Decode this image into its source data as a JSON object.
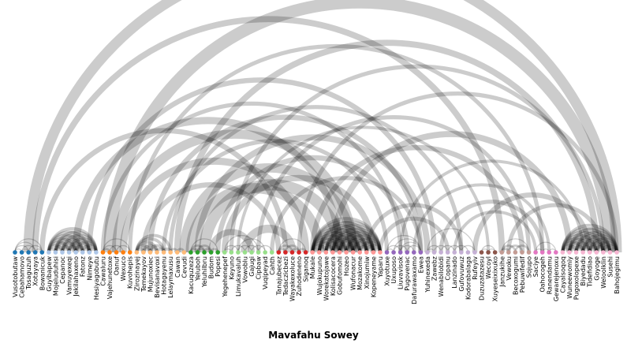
{
  "chart_data": {
    "type": "arc-diagram",
    "title": "Mavafahu Sowey",
    "groups": [
      {
        "id": 0,
        "color": "#1f77b4"
      },
      {
        "id": 1,
        "color": "#aec7e8"
      },
      {
        "id": 2,
        "color": "#ff7f0e"
      },
      {
        "id": 3,
        "color": "#ffbb78"
      },
      {
        "id": 4,
        "color": "#2ca02c"
      },
      {
        "id": 5,
        "color": "#98df8a"
      },
      {
        "id": 6,
        "color": "#d62728"
      },
      {
        "id": 7,
        "color": "#ff9896"
      },
      {
        "id": 8,
        "color": "#9467bd"
      },
      {
        "id": 9,
        "color": "#c5b0d5"
      },
      {
        "id": 10,
        "color": "#8c564b"
      },
      {
        "id": 11,
        "color": "#c49c94"
      },
      {
        "id": 12,
        "color": "#e377c2"
      },
      {
        "id": 13,
        "color": "#f7b6d2"
      }
    ],
    "nodes": [
      {
        "label": "Vusotobutaw",
        "group": 0
      },
      {
        "label": "Cebahamovo",
        "group": 0
      },
      {
        "label": "Tosaguzuh",
        "group": 0
      },
      {
        "label": "Xotayaya",
        "group": 0
      },
      {
        "label": "Bowanicuk",
        "group": 0
      },
      {
        "label": "Guyibapew",
        "group": 1
      },
      {
        "label": "Mojeluduhisi",
        "group": 1
      },
      {
        "label": "Cepanoc",
        "group": 1
      },
      {
        "label": "Vamuyexeqi",
        "group": 1
      },
      {
        "label": "Jekilahaxeno",
        "group": 1
      },
      {
        "label": "Fatonz",
        "group": 1
      },
      {
        "label": "Nimeye",
        "group": 1
      },
      {
        "label": "Hesiyagobutu",
        "group": 1
      },
      {
        "label": "Cawaluru",
        "group": 2
      },
      {
        "label": "Vajehunetoxe",
        "group": 2
      },
      {
        "label": "Oanuf",
        "group": 2
      },
      {
        "label": "Wexuco",
        "group": 2
      },
      {
        "label": "Kuvohepis",
        "group": 2
      },
      {
        "label": "Zirozinayej",
        "group": 3
      },
      {
        "label": "Temekayov",
        "group": 3
      },
      {
        "label": "Mujunoxiec",
        "group": 3
      },
      {
        "label": "Bevisanavoxi",
        "group": 3
      },
      {
        "label": "Hotagayenu",
        "group": 3
      },
      {
        "label": "Lelaymaxusu",
        "group": 3
      },
      {
        "label": "Cawan",
        "group": 3
      },
      {
        "label": "Cevudi",
        "group": 3
      },
      {
        "label": "Kacuquzeza",
        "group": 4
      },
      {
        "label": "Yeluboh",
        "group": 4
      },
      {
        "label": "Yeluhilbru",
        "group": 4
      },
      {
        "label": "Budom",
        "group": 4
      },
      {
        "label": "Popesi",
        "group": 4
      },
      {
        "label": "Yegehenepef",
        "group": 5
      },
      {
        "label": "Keyuno",
        "group": 5
      },
      {
        "label": "Limukavaluh",
        "group": 5
      },
      {
        "label": "Vowoblu",
        "group": 5
      },
      {
        "label": "Gajugi",
        "group": 5
      },
      {
        "label": "Cipbaw",
        "group": 5
      },
      {
        "label": "Vuqipeyad",
        "group": 5
      },
      {
        "label": "Cahth",
        "group": 5
      },
      {
        "label": "Tanajubecez",
        "group": 6
      },
      {
        "label": "Tedaczicbezi",
        "group": 6
      },
      {
        "label": "Wayakexoluce",
        "group": 6
      },
      {
        "label": "Zuhodeneno",
        "group": 6
      },
      {
        "label": "Siganoq",
        "group": 6
      },
      {
        "label": "Mukale",
        "group": 7
      },
      {
        "label": "Wujokupuno",
        "group": 7
      },
      {
        "label": "Worekatojawe",
        "group": 7
      },
      {
        "label": "Kolisacocera",
        "group": 7
      },
      {
        "label": "Gobufomohi",
        "group": 7
      },
      {
        "label": "Hozeo",
        "group": 7
      },
      {
        "label": "Wufonacur",
        "group": 7
      },
      {
        "label": "Mozakome",
        "group": 7
      },
      {
        "label": "Xinojumiw",
        "group": 7
      },
      {
        "label": "Kopeneyame",
        "group": 7
      },
      {
        "label": "Yaparu",
        "group": 7
      },
      {
        "label": "Xuyotuxe",
        "group": 8
      },
      {
        "label": "Uxuposo",
        "group": 8
      },
      {
        "label": "Liuvavisok",
        "group": 8
      },
      {
        "label": "Pugovenac",
        "group": 8
      },
      {
        "label": "Dafurawaxamo",
        "group": 8
      },
      {
        "label": "Ewea",
        "group": 8
      },
      {
        "label": "Yuhinexeda",
        "group": 9
      },
      {
        "label": "Zawebz",
        "group": 9
      },
      {
        "label": "Wenabilobidi",
        "group": 9
      },
      {
        "label": "Copanu",
        "group": 9
      },
      {
        "label": "Lanzinado",
        "group": 9
      },
      {
        "label": "Gufovuwuz",
        "group": 9
      },
      {
        "label": "Kodorabalaga",
        "group": 9
      },
      {
        "label": "Rufeyiv",
        "group": 9
      },
      {
        "label": "Duzuzatazesu",
        "group": 10
      },
      {
        "label": "Wecoyl",
        "group": 10
      },
      {
        "label": "Xuyeseixixuko",
        "group": 10
      },
      {
        "label": "Janzukihe",
        "group": 11
      },
      {
        "label": "Vewoku",
        "group": 11
      },
      {
        "label": "Becoxogumi",
        "group": 11
      },
      {
        "label": "Pebuwifedif",
        "group": 11
      },
      {
        "label": "Sojupo",
        "group": 11
      },
      {
        "label": "Saciye",
        "group": 12
      },
      {
        "label": "Oahocogeh",
        "group": 12
      },
      {
        "label": "Ranendamu",
        "group": 12
      },
      {
        "label": "Gewarejenoxu",
        "group": 12
      },
      {
        "label": "Cayalsoqoq",
        "group": 13
      },
      {
        "label": "Wuneewomiy",
        "group": 13
      },
      {
        "label": "Pugoxolopexe",
        "group": 13
      },
      {
        "label": "Biyedadu",
        "group": 13
      },
      {
        "label": "Tidefidiao",
        "group": 13
      },
      {
        "label": "Goyoge",
        "group": 13
      },
      {
        "label": "Weloolklin",
        "group": 13
      },
      {
        "label": "Susehi",
        "group": 13
      },
      {
        "label": "Bahojegimu",
        "group": 13
      }
    ],
    "links": [
      [
        0,
        1,
        1
      ],
      [
        0,
        2,
        1
      ],
      [
        0,
        3,
        1
      ],
      [
        1,
        2,
        1
      ],
      [
        1,
        3,
        1
      ],
      [
        2,
        4,
        1
      ],
      [
        3,
        4,
        1
      ],
      [
        0,
        4,
        1
      ],
      [
        5,
        6,
        3
      ],
      [
        5,
        7,
        3
      ],
      [
        5,
        8,
        3
      ],
      [
        5,
        9,
        3
      ],
      [
        5,
        10,
        3
      ],
      [
        5,
        11,
        3
      ],
      [
        5,
        12,
        3
      ],
      [
        6,
        7,
        3
      ],
      [
        6,
        8,
        3
      ],
      [
        6,
        9,
        3
      ],
      [
        6,
        10,
        3
      ],
      [
        6,
        11,
        3
      ],
      [
        6,
        12,
        3
      ],
      [
        7,
        8,
        3
      ],
      [
        7,
        9,
        3
      ],
      [
        7,
        10,
        3
      ],
      [
        7,
        11,
        3
      ],
      [
        7,
        12,
        3
      ],
      [
        8,
        9,
        3
      ],
      [
        8,
        10,
        3
      ],
      [
        8,
        11,
        3
      ],
      [
        8,
        12,
        3
      ],
      [
        9,
        10,
        3
      ],
      [
        9,
        11,
        3
      ],
      [
        9,
        12,
        3
      ],
      [
        10,
        11,
        3
      ],
      [
        10,
        12,
        3
      ],
      [
        11,
        12,
        3
      ],
      [
        13,
        14,
        2
      ],
      [
        13,
        15,
        1
      ],
      [
        13,
        17,
        1
      ],
      [
        14,
        16,
        1
      ],
      [
        15,
        17,
        1
      ],
      [
        18,
        19,
        3
      ],
      [
        18,
        20,
        3
      ],
      [
        18,
        21,
        3
      ],
      [
        18,
        22,
        3
      ],
      [
        18,
        23,
        3
      ],
      [
        19,
        20,
        3
      ],
      [
        19,
        21,
        3
      ],
      [
        20,
        21,
        3
      ],
      [
        20,
        22,
        3
      ],
      [
        21,
        22,
        3
      ],
      [
        22,
        23,
        3
      ],
      [
        23,
        24,
        2
      ],
      [
        24,
        25,
        2
      ],
      [
        26,
        27,
        2
      ],
      [
        26,
        28,
        2
      ],
      [
        27,
        28,
        2
      ],
      [
        27,
        29,
        2
      ],
      [
        28,
        29,
        2
      ],
      [
        29,
        30,
        2
      ],
      [
        26,
        30,
        1
      ],
      [
        31,
        32,
        1
      ],
      [
        31,
        33,
        1
      ],
      [
        32,
        34,
        1
      ],
      [
        33,
        35,
        1
      ],
      [
        34,
        36,
        1
      ],
      [
        35,
        37,
        1
      ],
      [
        36,
        38,
        1
      ],
      [
        31,
        36,
        1
      ],
      [
        33,
        37,
        1
      ],
      [
        39,
        40,
        2
      ],
      [
        39,
        41,
        2
      ],
      [
        40,
        42,
        2
      ],
      [
        41,
        42,
        2
      ],
      [
        42,
        43,
        2
      ],
      [
        39,
        43,
        1
      ],
      [
        44,
        45,
        3
      ],
      [
        44,
        46,
        3
      ],
      [
        44,
        47,
        3
      ],
      [
        44,
        48,
        3
      ],
      [
        44,
        49,
        3
      ],
      [
        44,
        50,
        3
      ],
      [
        44,
        51,
        3
      ],
      [
        44,
        52,
        3
      ],
      [
        44,
        53,
        3
      ],
      [
        44,
        54,
        3
      ],
      [
        45,
        46,
        3
      ],
      [
        45,
        47,
        3
      ],
      [
        45,
        48,
        3
      ],
      [
        45,
        49,
        3
      ],
      [
        45,
        50,
        3
      ],
      [
        45,
        51,
        3
      ],
      [
        45,
        52,
        3
      ],
      [
        45,
        53,
        3
      ],
      [
        45,
        54,
        3
      ],
      [
        46,
        47,
        3
      ],
      [
        46,
        48,
        3
      ],
      [
        46,
        49,
        3
      ],
      [
        46,
        50,
        3
      ],
      [
        46,
        51,
        3
      ],
      [
        46,
        52,
        3
      ],
      [
        46,
        53,
        3
      ],
      [
        46,
        54,
        3
      ],
      [
        47,
        48,
        3
      ],
      [
        47,
        49,
        3
      ],
      [
        47,
        50,
        3
      ],
      [
        47,
        51,
        3
      ],
      [
        47,
        52,
        3
      ],
      [
        47,
        53,
        3
      ],
      [
        47,
        54,
        3
      ],
      [
        48,
        49,
        3
      ],
      [
        48,
        50,
        3
      ],
      [
        48,
        51,
        3
      ],
      [
        48,
        52,
        3
      ],
      [
        48,
        53,
        3
      ],
      [
        48,
        54,
        3
      ],
      [
        49,
        50,
        3
      ],
      [
        49,
        51,
        3
      ],
      [
        49,
        52,
        3
      ],
      [
        49,
        53,
        3
      ],
      [
        49,
        54,
        3
      ],
      [
        50,
        51,
        3
      ],
      [
        50,
        52,
        3
      ],
      [
        50,
        53,
        3
      ],
      [
        50,
        54,
        3
      ],
      [
        51,
        52,
        3
      ],
      [
        51,
        53,
        3
      ],
      [
        51,
        54,
        3
      ],
      [
        52,
        53,
        3
      ],
      [
        52,
        54,
        3
      ],
      [
        53,
        54,
        3
      ],
      [
        55,
        56,
        1
      ],
      [
        55,
        57,
        1
      ],
      [
        56,
        58,
        1
      ],
      [
        57,
        59,
        1
      ],
      [
        58,
        60,
        1
      ],
      [
        55,
        60,
        1
      ],
      [
        56,
        60,
        1
      ],
      [
        57,
        60,
        1
      ],
      [
        61,
        62,
        1
      ],
      [
        61,
        63,
        1
      ],
      [
        62,
        64,
        1
      ],
      [
        63,
        65,
        1
      ],
      [
        64,
        66,
        1
      ],
      [
        65,
        67,
        1
      ],
      [
        66,
        68,
        1
      ],
      [
        61,
        68,
        1
      ],
      [
        69,
        70,
        1
      ],
      [
        70,
        71,
        1
      ],
      [
        69,
        71,
        1
      ],
      [
        72,
        73,
        2
      ],
      [
        72,
        74,
        2
      ],
      [
        73,
        75,
        2
      ],
      [
        74,
        76,
        2
      ],
      [
        72,
        76,
        1
      ],
      [
        77,
        78,
        1
      ],
      [
        78,
        79,
        1
      ],
      [
        79,
        80,
        1
      ],
      [
        77,
        80,
        1
      ],
      [
        81,
        82,
        3
      ],
      [
        81,
        83,
        3
      ],
      [
        81,
        84,
        3
      ],
      [
        81,
        85,
        3
      ],
      [
        81,
        86,
        3
      ],
      [
        81,
        87,
        3
      ],
      [
        81,
        88,
        3
      ],
      [
        81,
        89,
        3
      ],
      [
        82,
        83,
        3
      ],
      [
        82,
        84,
        3
      ],
      [
        82,
        85,
        3
      ],
      [
        82,
        86,
        3
      ],
      [
        82,
        87,
        3
      ],
      [
        82,
        88,
        3
      ],
      [
        82,
        89,
        3
      ],
      [
        83,
        84,
        3
      ],
      [
        83,
        85,
        3
      ],
      [
        83,
        86,
        3
      ],
      [
        83,
        87,
        3
      ],
      [
        83,
        88,
        3
      ],
      [
        83,
        89,
        3
      ],
      [
        84,
        85,
        3
      ],
      [
        84,
        86,
        3
      ],
      [
        84,
        87,
        3
      ],
      [
        84,
        88,
        3
      ],
      [
        84,
        89,
        3
      ],
      [
        85,
        86,
        3
      ],
      [
        85,
        87,
        3
      ],
      [
        85,
        88,
        3
      ],
      [
        85,
        89,
        3
      ],
      [
        86,
        87,
        3
      ],
      [
        86,
        88,
        3
      ],
      [
        86,
        89,
        3
      ],
      [
        87,
        88,
        3
      ],
      [
        87,
        89,
        3
      ],
      [
        88,
        89,
        3
      ],
      [
        2,
        89,
        10
      ],
      [
        3,
        72,
        6
      ],
      [
        4,
        40,
        5
      ],
      [
        9,
        48,
        7
      ],
      [
        11,
        62,
        5
      ],
      [
        14,
        88,
        12
      ],
      [
        15,
        50,
        9
      ],
      [
        16,
        43,
        7
      ],
      [
        17,
        78,
        4
      ],
      [
        20,
        60,
        5
      ],
      [
        22,
        55,
        4
      ],
      [
        23,
        66,
        4
      ],
      [
        24,
        86,
        6
      ],
      [
        25,
        50,
        9
      ],
      [
        26,
        45,
        10
      ],
      [
        27,
        61,
        6
      ],
      [
        28,
        48,
        11
      ],
      [
        29,
        35,
        6
      ],
      [
        30,
        58,
        5
      ],
      [
        32,
        87,
        4
      ],
      [
        34,
        41,
        8
      ],
      [
        36,
        76,
        4
      ],
      [
        38,
        60,
        4
      ],
      [
        42,
        89,
        4
      ],
      [
        44,
        75,
        5
      ],
      [
        47,
        82,
        6
      ],
      [
        52,
        66,
        4
      ],
      [
        54,
        64,
        4
      ],
      [
        57,
        84,
        3
      ],
      [
        59,
        79,
        3
      ],
      [
        63,
        78,
        4
      ],
      [
        65,
        77,
        3
      ],
      [
        68,
        85,
        5
      ],
      [
        73,
        87,
        4
      ],
      [
        13,
        57,
        4
      ],
      [
        19,
        39,
        5
      ],
      [
        31,
        53,
        6
      ],
      [
        33,
        70,
        3
      ]
    ]
  }
}
